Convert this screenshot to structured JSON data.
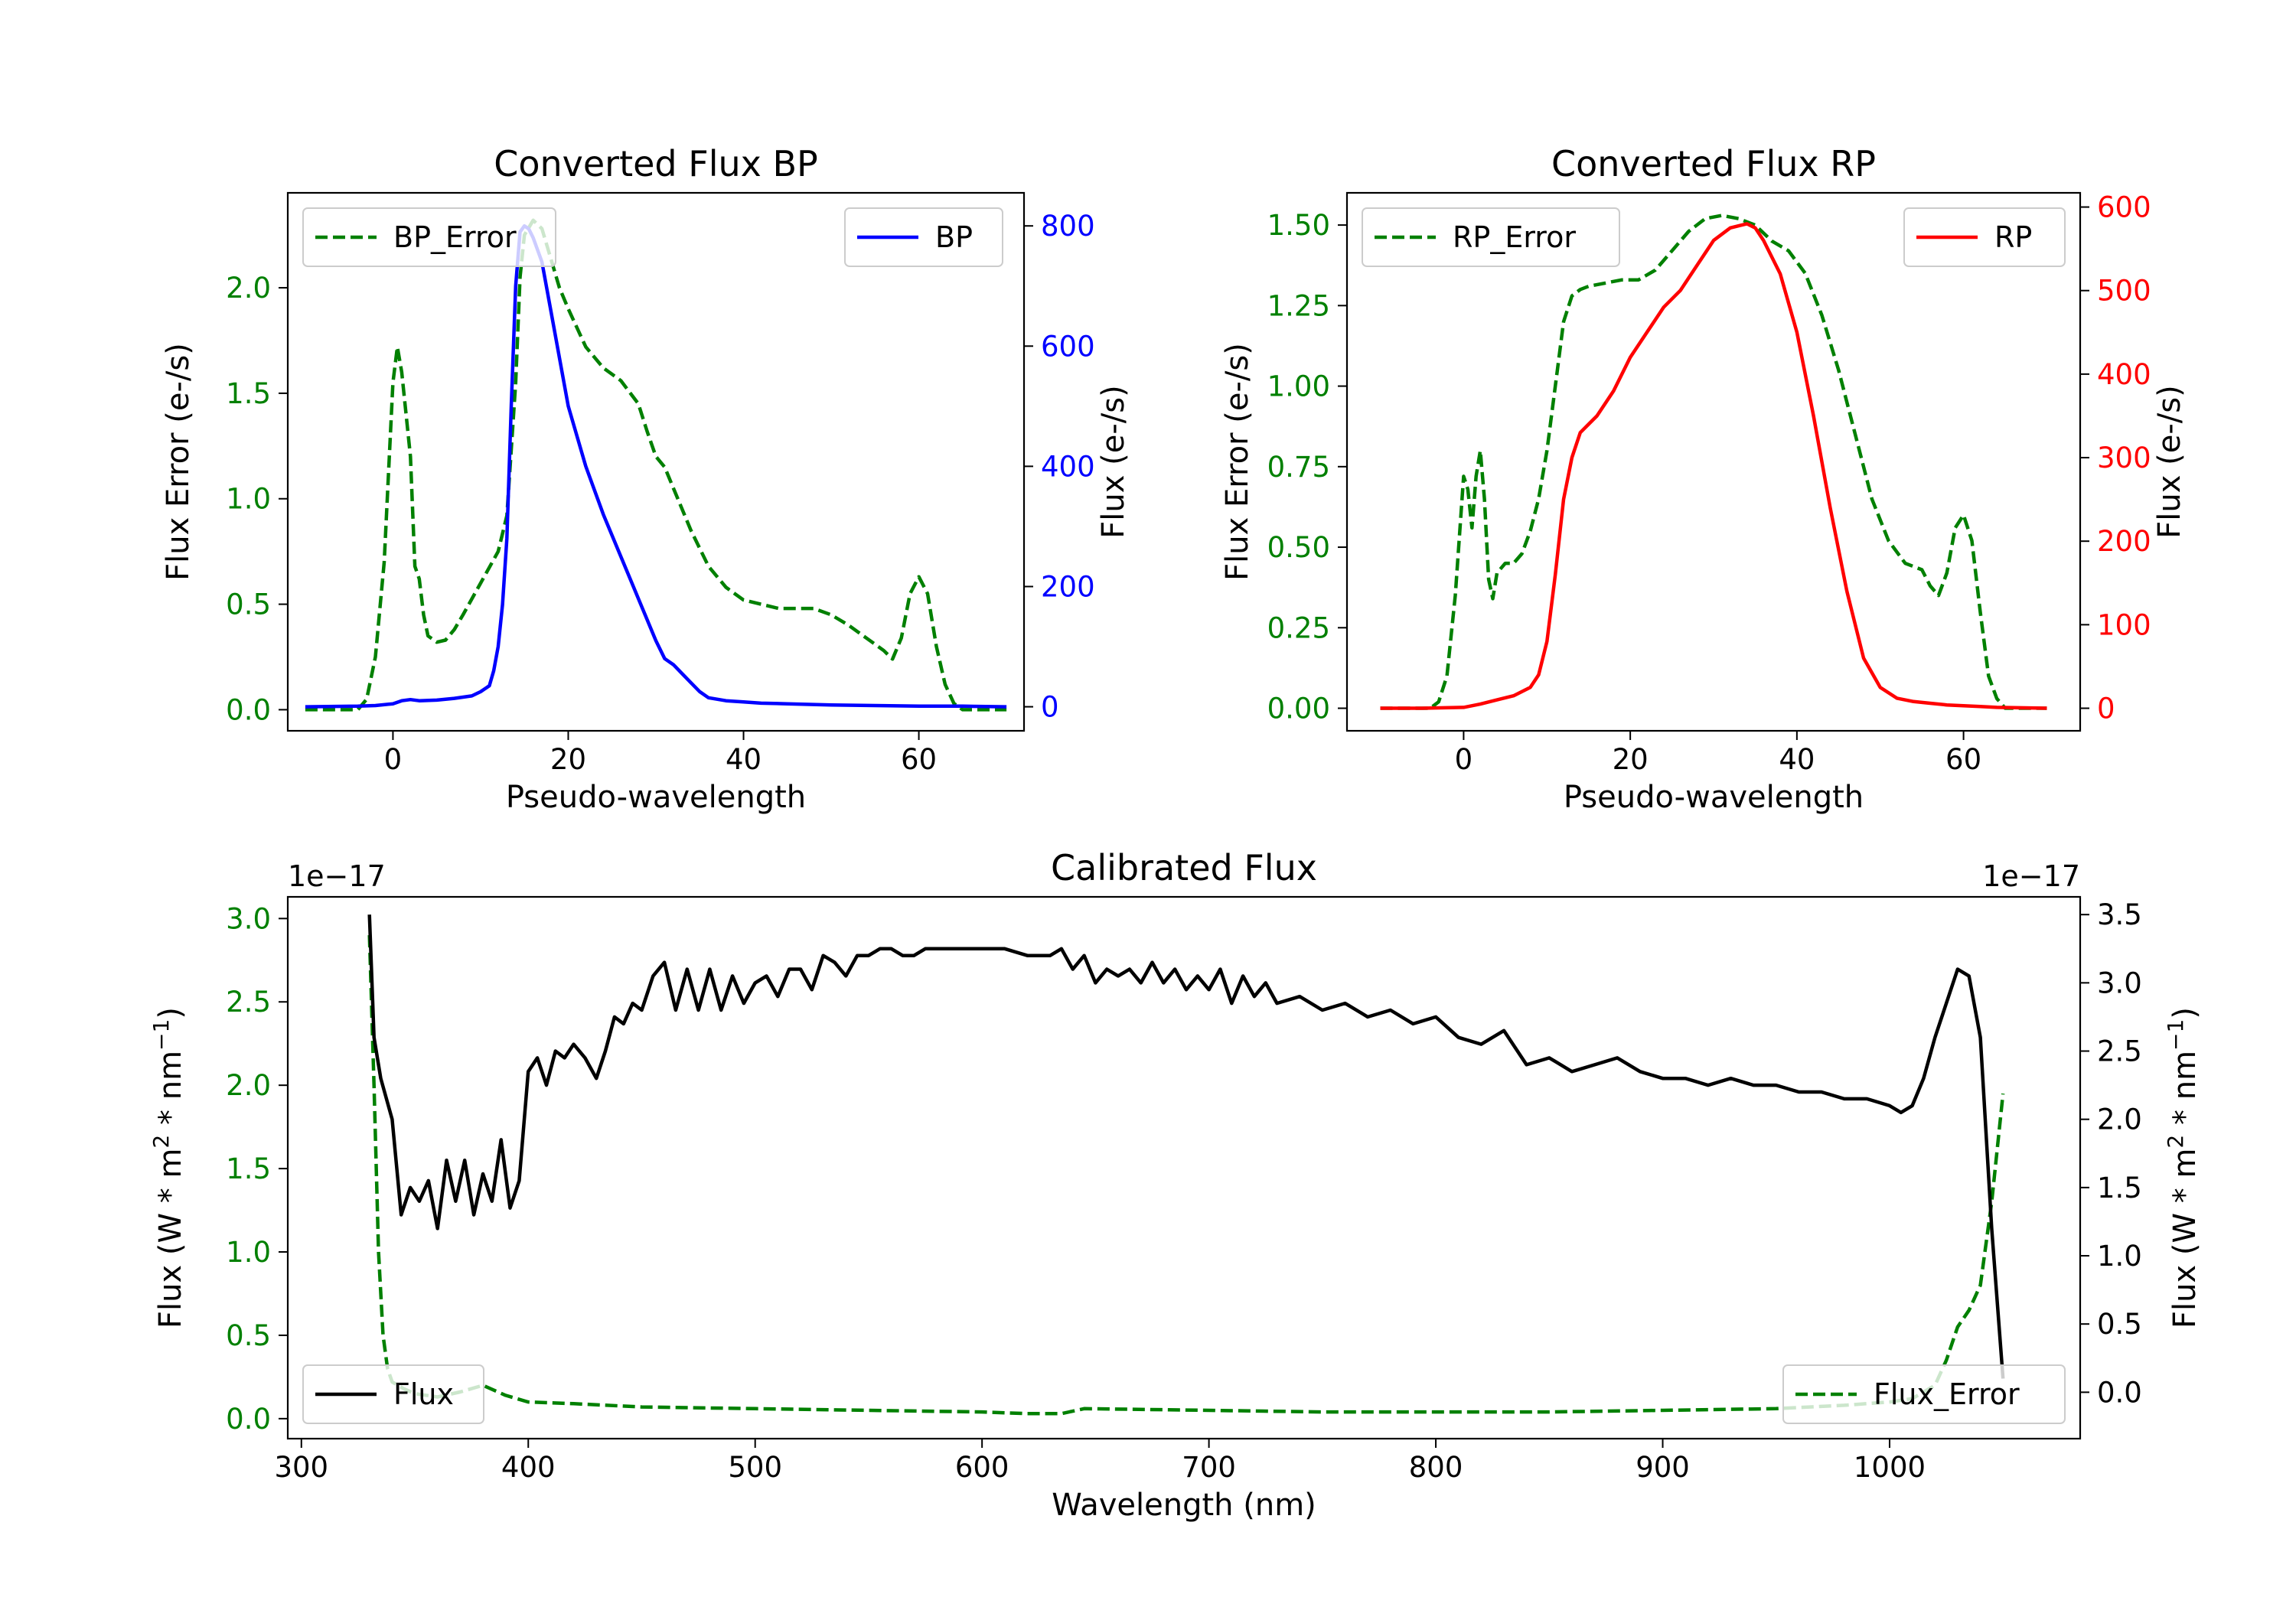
{
  "chart_data": [
    {
      "type": "line",
      "title": "Converted Flux BP",
      "xlabel": "Pseudo-wavelength",
      "ylabel_left": "Flux Error (e-/s)",
      "ylabel_right": "Flux (e-/s)",
      "xlim": [
        -12,
        72
      ],
      "ylim_left": [
        -0.1,
        2.45
      ],
      "ylim_right": [
        -40,
        855
      ],
      "xticks": [
        0,
        20,
        40,
        60
      ],
      "yticks_left": [
        0.0,
        0.5,
        1.0,
        1.5,
        2.0
      ],
      "yticks_right": [
        0,
        200,
        400,
        600,
        800
      ],
      "left_tick_color": "#008000",
      "right_tick_color": "#0000ff",
      "legend_left": {
        "position": "upper left",
        "label": "BP_Error"
      },
      "legend_right": {
        "position": "upper right",
        "label": "BP"
      },
      "series": [
        {
          "name": "BP_Error",
          "axis": "left",
          "color": "#008000",
          "style": "dashed",
          "x": [
            -10,
            -4,
            -3,
            -2,
            -1,
            0,
            0.5,
            1,
            2,
            2.5,
            3,
            3.5,
            4,
            5,
            6,
            7,
            8,
            10,
            12,
            13,
            14,
            14.5,
            15,
            16,
            17,
            18,
            19,
            20,
            22,
            24,
            26,
            28,
            29,
            30,
            31,
            32,
            34,
            36,
            38,
            40,
            42,
            44,
            46,
            48,
            50,
            52,
            54,
            56,
            57,
            58,
            59,
            60,
            61,
            62,
            63,
            64,
            65,
            67,
            70
          ],
          "y": [
            0,
            0,
            0.05,
            0.25,
            0.7,
            1.55,
            1.72,
            1.6,
            1.2,
            0.68,
            0.62,
            0.45,
            0.35,
            0.32,
            0.33,
            0.38,
            0.45,
            0.6,
            0.75,
            0.92,
            1.55,
            2.05,
            2.25,
            2.32,
            2.28,
            2.14,
            2.0,
            1.9,
            1.72,
            1.62,
            1.56,
            1.45,
            1.32,
            1.2,
            1.15,
            1.05,
            0.85,
            0.68,
            0.58,
            0.52,
            0.5,
            0.48,
            0.48,
            0.48,
            0.45,
            0.4,
            0.34,
            0.28,
            0.24,
            0.34,
            0.55,
            0.63,
            0.55,
            0.3,
            0.12,
            0.03,
            0,
            0,
            0
          ]
        },
        {
          "name": "BP",
          "axis": "right",
          "color": "#0000ff",
          "style": "solid",
          "x": [
            -10,
            -4,
            -2,
            0,
            1,
            2,
            3,
            5,
            7,
            9,
            10,
            11,
            11.5,
            12,
            12.5,
            13,
            13.5,
            14,
            14.5,
            15,
            15.5,
            16,
            17,
            18,
            20,
            22,
            24,
            26,
            28,
            30,
            31,
            32,
            34,
            35,
            36,
            38,
            40,
            42,
            45,
            50,
            55,
            60,
            65,
            70
          ],
          "y": [
            0,
            1,
            2,
            5,
            10,
            12,
            10,
            11,
            14,
            18,
            25,
            35,
            60,
            100,
            170,
            280,
            500,
            700,
            790,
            800,
            795,
            780,
            740,
            660,
            500,
            400,
            320,
            250,
            180,
            110,
            80,
            70,
            40,
            25,
            15,
            10,
            8,
            6,
            5,
            3,
            2,
            1,
            1,
            0
          ]
        }
      ]
    },
    {
      "type": "line",
      "title": "Converted Flux RP",
      "xlabel": "Pseudo-wavelength",
      "ylabel_left": "Flux Error (e-/s)",
      "ylabel_right": "Flux (e-/s)",
      "xlim": [
        -14,
        74
      ],
      "ylim_left": [
        -0.07,
        1.6
      ],
      "ylim_right": [
        -27,
        617
      ],
      "xticks": [
        0,
        20,
        40,
        60
      ],
      "yticks_left": [
        0.0,
        0.25,
        0.5,
        0.75,
        1.0,
        1.25,
        1.5
      ],
      "yticks_right": [
        0,
        100,
        200,
        300,
        400,
        500,
        600
      ],
      "left_tick_color": "#008000",
      "right_tick_color": "#ff0000",
      "legend_left": {
        "position": "upper left",
        "label": "RP_Error"
      },
      "legend_right": {
        "position": "upper right",
        "label": "RP"
      },
      "series": [
        {
          "name": "RP_Error",
          "axis": "left",
          "color": "#008000",
          "style": "dashed",
          "x": [
            -10,
            -4,
            -3,
            -2,
            -1,
            0,
            0.5,
            1,
            1.5,
            2,
            2.5,
            3,
            3.5,
            4,
            5,
            6,
            7,
            8,
            9,
            10,
            11,
            12,
            13,
            14,
            15,
            17,
            19,
            21,
            23,
            25,
            27,
            29,
            31,
            33,
            35,
            37,
            39,
            41,
            43,
            45,
            47,
            49,
            51,
            53,
            55,
            56,
            57,
            58,
            59,
            60,
            61,
            62,
            63,
            64,
            65,
            68,
            70
          ],
          "y": [
            0,
            0,
            0.02,
            0.1,
            0.35,
            0.72,
            0.68,
            0.56,
            0.72,
            0.8,
            0.65,
            0.4,
            0.34,
            0.42,
            0.45,
            0.45,
            0.48,
            0.55,
            0.65,
            0.8,
            1.0,
            1.2,
            1.28,
            1.3,
            1.31,
            1.32,
            1.33,
            1.33,
            1.36,
            1.42,
            1.48,
            1.52,
            1.53,
            1.52,
            1.5,
            1.45,
            1.42,
            1.35,
            1.22,
            1.05,
            0.85,
            0.65,
            0.52,
            0.45,
            0.43,
            0.38,
            0.35,
            0.42,
            0.56,
            0.6,
            0.52,
            0.3,
            0.1,
            0.03,
            0,
            0,
            0
          ]
        },
        {
          "name": "RP",
          "axis": "right",
          "color": "#ff0000",
          "style": "solid",
          "x": [
            -10,
            -5,
            0,
            2,
            4,
            6,
            8,
            9,
            10,
            11,
            12,
            13,
            14,
            15,
            16,
            18,
            20,
            22,
            24,
            26,
            28,
            30,
            32,
            34,
            35,
            36,
            38,
            40,
            42,
            44,
            46,
            48,
            50,
            52,
            54,
            56,
            58,
            60,
            62,
            64,
            70
          ],
          "y": [
            0,
            0,
            1,
            5,
            10,
            15,
            25,
            40,
            80,
            160,
            250,
            300,
            330,
            340,
            350,
            380,
            420,
            450,
            480,
            500,
            530,
            560,
            575,
            580,
            575,
            560,
            520,
            450,
            350,
            240,
            140,
            60,
            25,
            12,
            8,
            6,
            4,
            3,
            2,
            1,
            0
          ]
        }
      ]
    },
    {
      "type": "line",
      "title": "Calibrated Flux",
      "xlabel": "Wavelength (nm)",
      "ylabel_left": "Flux (W * m$^2$ * nm$^{-1}$)",
      "ylabel_right": "Flux (W * m$^2$ * nm$^{-1}$)",
      "offset_left": "1e−17",
      "offset_right": "1e−17",
      "xlim": [
        294,
        1084
      ],
      "ylim_left": [
        -0.12,
        3.13
      ],
      "ylim_right": [
        -0.34,
        3.63
      ],
      "xticks": [
        300,
        400,
        500,
        600,
        700,
        800,
        900,
        1000
      ],
      "yticks_left": [
        0.0,
        0.5,
        1.0,
        1.5,
        2.0,
        2.5,
        3.0
      ],
      "yticks_right": [
        0.0,
        0.5,
        1.0,
        1.5,
        2.0,
        2.5,
        3.0,
        3.5
      ],
      "left_tick_color": "#008000",
      "right_tick_color": "#000000",
      "legend_left": {
        "position": "lower left",
        "label": "Flux"
      },
      "legend_right": {
        "position": "lower right",
        "label": "Flux_Error"
      },
      "series": [
        {
          "name": "Flux_Error",
          "axis": "left",
          "color": "#008000",
          "style": "dashed",
          "x": [
            330,
            332,
            334,
            336,
            338,
            340,
            345,
            350,
            360,
            370,
            380,
            390,
            400,
            420,
            450,
            500,
            550,
            600,
            620,
            635,
            645,
            700,
            750,
            800,
            850,
            900,
            950,
            980,
            1000,
            1010,
            1020,
            1025,
            1030,
            1035,
            1040,
            1045,
            1050
          ],
          "y": [
            2.9,
            2.0,
            1.0,
            0.5,
            0.3,
            0.22,
            0.18,
            0.15,
            0.13,
            0.16,
            0.2,
            0.14,
            0.1,
            0.09,
            0.07,
            0.06,
            0.05,
            0.04,
            0.03,
            0.03,
            0.06,
            0.05,
            0.04,
            0.04,
            0.04,
            0.05,
            0.06,
            0.08,
            0.1,
            0.12,
            0.2,
            0.35,
            0.55,
            0.65,
            0.8,
            1.3,
            1.95
          ]
        },
        {
          "name": "Flux",
          "axis": "right",
          "color": "#000000",
          "style": "solid",
          "x": [
            330,
            332,
            335,
            340,
            344,
            348,
            352,
            356,
            360,
            364,
            368,
            372,
            376,
            380,
            384,
            388,
            392,
            396,
            400,
            404,
            408,
            412,
            416,
            420,
            425,
            430,
            434,
            438,
            442,
            446,
            450,
            455,
            460,
            465,
            470,
            475,
            480,
            485,
            490,
            495,
            500,
            505,
            510,
            515,
            520,
            525,
            530,
            535,
            540,
            545,
            550,
            555,
            560,
            565,
            570,
            575,
            580,
            590,
            600,
            610,
            620,
            630,
            635,
            640,
            645,
            650,
            655,
            660,
            665,
            670,
            675,
            680,
            685,
            690,
            695,
            700,
            705,
            710,
            715,
            720,
            725,
            730,
            740,
            750,
            760,
            770,
            780,
            790,
            800,
            810,
            820,
            830,
            840,
            850,
            860,
            870,
            880,
            890,
            900,
            910,
            920,
            930,
            940,
            950,
            960,
            970,
            980,
            990,
            1000,
            1005,
            1010,
            1015,
            1020,
            1025,
            1030,
            1035,
            1040,
            1045,
            1050
          ],
          "y": [
            3.5,
            2.6,
            2.3,
            2.0,
            1.3,
            1.5,
            1.4,
            1.55,
            1.2,
            1.7,
            1.4,
            1.7,
            1.3,
            1.6,
            1.4,
            1.85,
            1.35,
            1.55,
            2.35,
            2.45,
            2.25,
            2.5,
            2.45,
            2.55,
            2.45,
            2.3,
            2.5,
            2.75,
            2.7,
            2.85,
            2.8,
            3.05,
            3.15,
            2.8,
            3.1,
            2.8,
            3.1,
            2.8,
            3.05,
            2.85,
            3.0,
            3.05,
            2.9,
            3.1,
            3.1,
            2.95,
            3.2,
            3.15,
            3.05,
            3.2,
            3.2,
            3.25,
            3.25,
            3.2,
            3.2,
            3.25,
            3.25,
            3.25,
            3.25,
            3.25,
            3.2,
            3.2,
            3.25,
            3.1,
            3.2,
            3.0,
            3.1,
            3.05,
            3.1,
            3.0,
            3.15,
            3.0,
            3.1,
            2.95,
            3.05,
            2.95,
            3.1,
            2.85,
            3.05,
            2.9,
            3.0,
            2.85,
            2.9,
            2.8,
            2.85,
            2.75,
            2.8,
            2.7,
            2.75,
            2.6,
            2.55,
            2.65,
            2.4,
            2.45,
            2.35,
            2.4,
            2.45,
            2.35,
            2.3,
            2.3,
            2.25,
            2.3,
            2.25,
            2.25,
            2.2,
            2.2,
            2.15,
            2.15,
            2.1,
            2.05,
            2.1,
            2.3,
            2.6,
            2.85,
            3.1,
            3.05,
            2.6,
            1.2,
            0.1
          ]
        }
      ]
    }
  ]
}
